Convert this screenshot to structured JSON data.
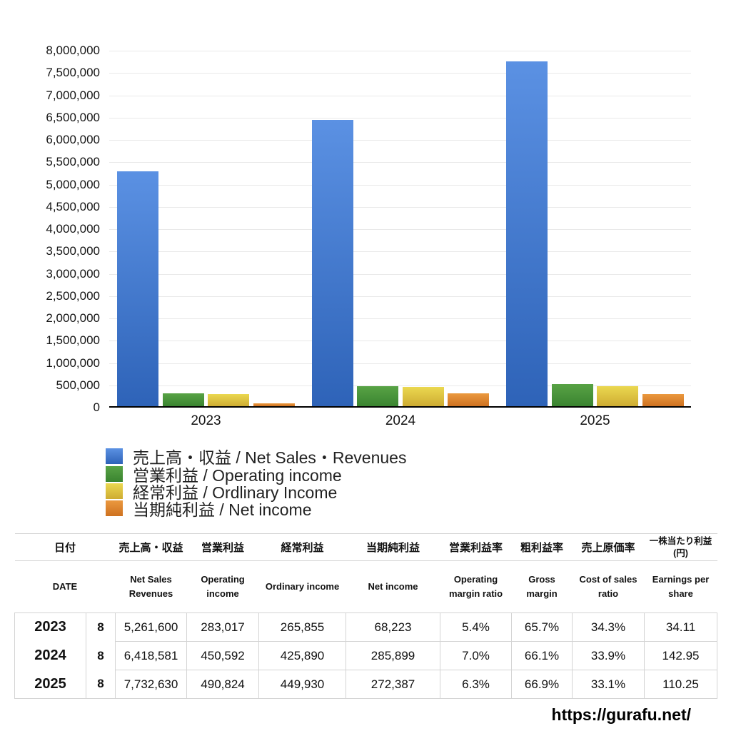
{
  "chart_data": {
    "type": "bar",
    "categories": [
      "2023",
      "2024",
      "2025"
    ],
    "series": [
      {
        "name": "売上高・収益 / Net Sales・Revenues",
        "color_top": "#5B91E3",
        "color_bottom": "#2E63B8",
        "values": [
          5261600,
          6418581,
          7732630
        ]
      },
      {
        "name": "営業利益 / Operating income",
        "color_top": "#58A345",
        "color_bottom": "#3A8430",
        "values": [
          283017,
          450592,
          490824
        ]
      },
      {
        "name": "経常利益 / Ordlinary Income",
        "color_top": "#EBD850",
        "color_bottom": "#CEAC32",
        "values": [
          265855,
          425890,
          449930
        ]
      },
      {
        "name": "当期純利益 / Net income",
        "color_top": "#EB993F",
        "color_bottom": "#CE7120",
        "values": [
          68223,
          285899,
          272387
        ]
      }
    ],
    "title": "",
    "xlabel": "",
    "ylabel": "",
    "ylim": [
      0,
      8000000
    ],
    "ytick_step": 500000,
    "grid": true,
    "legend_position": "bottom-left"
  },
  "table": {
    "columns_jp": [
      "日付",
      "売上高・収益",
      "営業利益",
      "経常利益",
      "当期純利益",
      "営業利益率",
      "粗利益率",
      "売上原価率",
      "一株当たり利益\n(円)"
    ],
    "columns_en": [
      "DATE",
      "Net Sales Revenues",
      "Operating income",
      "Ordinary income",
      "Net income",
      "Operating margin ratio",
      "Gross margin",
      "Cost of sales ratio",
      "Earnings per share"
    ],
    "rows": [
      {
        "year": "2023",
        "month": "8",
        "values": [
          "5,261,600",
          "283,017",
          "265,855",
          "68,223",
          "5.4%",
          "65.7%",
          "34.3%",
          "34.11"
        ]
      },
      {
        "year": "2024",
        "month": "8",
        "values": [
          "6,418,581",
          "450,592",
          "425,890",
          "285,899",
          "7.0%",
          "66.1%",
          "33.9%",
          "142.95"
        ]
      },
      {
        "year": "2025",
        "month": "8",
        "values": [
          "7,732,630",
          "490,824",
          "449,930",
          "272,387",
          "6.3%",
          "66.9%",
          "33.1%",
          "110.25"
        ]
      }
    ]
  },
  "footer": {
    "url": "https://gurafu.net/"
  }
}
